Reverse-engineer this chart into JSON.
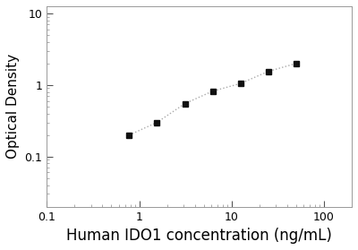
{
  "x_values": [
    0.78,
    1.56,
    3.125,
    6.25,
    12.5,
    25,
    50
  ],
  "y_values": [
    0.2,
    0.3,
    0.55,
    0.82,
    1.05,
    1.55,
    2.0
  ],
  "xlabel": "Human IDO1 concentration (ng/mL)",
  "ylabel": "Optical Density",
  "xlim_log": [
    -1,
    2.3
  ],
  "ylim_log": [
    -1.7,
    1.1
  ],
  "xtick_vals": [
    0.1,
    1,
    10,
    100
  ],
  "ytick_vals": [
    0.1,
    1,
    10
  ],
  "line_color": "#aaaaaa",
  "marker_color": "#111111",
  "line_style": ":",
  "marker_style": "s",
  "marker_size": 5,
  "line_width": 1.0,
  "xlabel_fontsize": 12,
  "ylabel_fontsize": 11,
  "tick_fontsize": 9,
  "bg_color": "#ffffff"
}
